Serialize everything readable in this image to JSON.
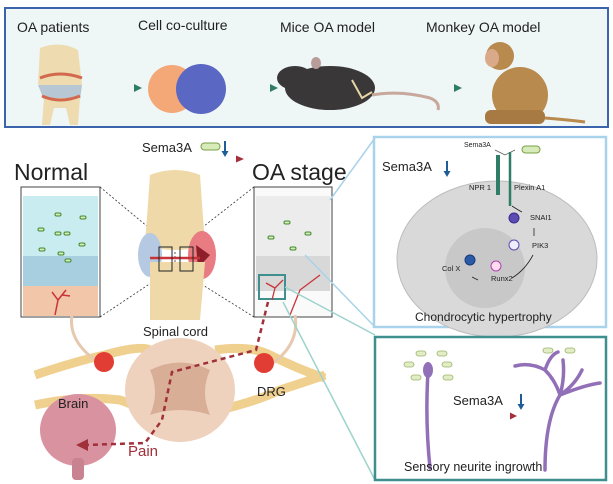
{
  "workflow": {
    "steps": [
      {
        "label": "OA patients"
      },
      {
        "label": "Cell co-culture"
      },
      {
        "label": "Mice OA model"
      },
      {
        "label": "Monkey OA model"
      }
    ]
  },
  "main": {
    "sema3a_label": "Sema3A",
    "normal_label": "Normal",
    "oa_stage_label": "OA stage",
    "spinal_cord_label": "Spinal cord",
    "brain_label": "Brain",
    "drg_label": "DRG",
    "pain_label": "Pain"
  },
  "chondrocyte_panel": {
    "ligand_label": "Sema3A",
    "sema3a_label": "Sema3A",
    "receptors": [
      "NPR 1",
      "Plexin A1"
    ],
    "molecules": [
      "SNAI1",
      "PIK3",
      "Runx2",
      "Col X"
    ],
    "title": "Chondrocytic hypertrophy"
  },
  "neurite_panel": {
    "sema3a_label": "Sema3A",
    "title": "Sensory neurite ingrowth"
  },
  "colors": {
    "top_border": "#3b64ad",
    "workflow_arrow": "#2f7d67",
    "red_arrow": "#a4303c",
    "down_arrow": "#1f5d99",
    "chondro_border": "#a9d3ea",
    "neurite_border": "#3f8f8f",
    "neurite": "#9270b8",
    "pain": "#a0303a"
  }
}
